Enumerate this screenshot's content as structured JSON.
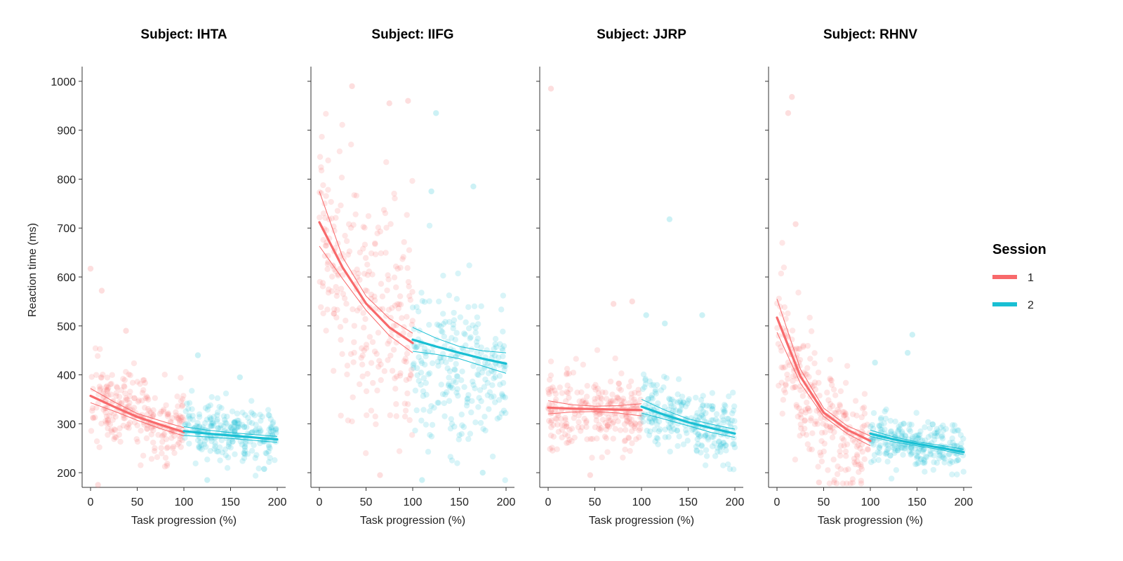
{
  "chart_data": {
    "type": "scatter",
    "ylabel": "Reaction time (ms)",
    "xlabel": "Task progression (%)",
    "xlim": [
      0,
      200
    ],
    "ylim": [
      170,
      1030
    ],
    "xticks": [
      0,
      50,
      100,
      150,
      200
    ],
    "yticks": [
      200,
      300,
      400,
      500,
      600,
      700,
      800,
      900,
      1000
    ],
    "legend": {
      "title": "Session",
      "placement": "right",
      "items": [
        {
          "label": "1",
          "color": "#f8696b"
        },
        {
          "label": "2",
          "color": "#19bfd3"
        }
      ]
    },
    "panels": [
      {
        "title": "Subject: IHTA",
        "scatter": {
          "session1": {
            "center": 320,
            "spread": 55,
            "outliers": [
              [
                0,
                617
              ],
              [
                12,
                572
              ],
              [
                38,
                490
              ],
              [
                8,
                175
              ]
            ]
          },
          "session2": {
            "center": 280,
            "spread": 45,
            "outliers": [
              [
                115,
                440
              ],
              [
                160,
                395
              ],
              [
                125,
                185
              ]
            ]
          }
        },
        "fit": {
          "session1": {
            "x": [
              0,
              25,
              50,
              75,
              100
            ],
            "y": [
              357,
              335,
              314,
              298,
              283
            ],
            "ci_low": [
              343,
              326,
              307,
              290,
              275
            ],
            "ci_high": [
              372,
              345,
              321,
              306,
              292
            ]
          },
          "session2": {
            "x": [
              100,
              125,
              150,
              175,
              200
            ],
            "y": [
              285,
              280,
              276,
              272,
              268
            ],
            "ci_low": [
              276,
              273,
              270,
              266,
              262
            ],
            "ci_high": [
              294,
              287,
              282,
              278,
              274
            ]
          }
        }
      },
      {
        "title": "Subject: IIFG",
        "scatter": {
          "session1": {
            "center": 560,
            "spread": 160,
            "outliers": [
              [
                35,
                990
              ],
              [
                75,
                955
              ],
              [
                95,
                960
              ],
              [
                65,
                195
              ]
            ]
          },
          "session2": {
            "center": 430,
            "spread": 110,
            "outliers": [
              [
                125,
                935
              ],
              [
                120,
                775
              ],
              [
                165,
                785
              ],
              [
                110,
                185
              ],
              [
                175,
                200
              ]
            ]
          }
        },
        "fit": {
          "session1": {
            "x": [
              0,
              25,
              50,
              75,
              100
            ],
            "y": [
              712,
              619,
              546,
              497,
              465
            ],
            "ci_low": [
              663,
              596,
              532,
              480,
              445
            ],
            "ci_high": [
              775,
              640,
              561,
              515,
              485
            ]
          },
          "session2": {
            "x": [
              100,
              125,
              150,
              175,
              200
            ],
            "y": [
              472,
              458,
              445,
              433,
              423
            ],
            "ci_low": [
              448,
              442,
              433,
              418,
              403
            ],
            "ci_high": [
              497,
              475,
              458,
              449,
              445
            ]
          }
        }
      },
      {
        "title": "Subject: JJRP",
        "scatter": {
          "session1": {
            "center": 330,
            "spread": 55,
            "outliers": [
              [
                3,
                985
              ],
              [
                90,
                550
              ],
              [
                70,
                545
              ],
              [
                45,
                195
              ]
            ]
          },
          "session2": {
            "center": 310,
            "spread": 50,
            "outliers": [
              [
                130,
                718
              ],
              [
                165,
                522
              ],
              [
                105,
                522
              ],
              [
                125,
                505
              ]
            ]
          }
        },
        "fit": {
          "session1": {
            "x": [
              0,
              25,
              50,
              75,
              100
            ],
            "y": [
              333,
              331,
              330,
              329,
              328
            ],
            "ci_low": [
              320,
              324,
              325,
              322,
              316
            ],
            "ci_high": [
              347,
              339,
              336,
              337,
              341
            ]
          },
          "session2": {
            "x": [
              100,
              125,
              150,
              175,
              200
            ],
            "y": [
              335,
              318,
              303,
              291,
              280
            ],
            "ci_low": [
              322,
              309,
              296,
              282,
              272
            ],
            "ci_high": [
              350,
              328,
              310,
              299,
              289
            ]
          }
        }
      },
      {
        "title": "Subject: RHNV",
        "scatter": {
          "session1": {
            "center": 340,
            "spread": 90,
            "outliers": [
              [
                16,
                968
              ],
              [
                12,
                935
              ],
              [
                20,
                708
              ],
              [
                45,
                180
              ]
            ]
          },
          "session2": {
            "center": 260,
            "spread": 35,
            "outliers": [
              [
                145,
                482
              ],
              [
                140,
                445
              ],
              [
                105,
                425
              ]
            ]
          }
        },
        "fit": {
          "session1": {
            "x": [
              0,
              25,
              50,
              75,
              100
            ],
            "y": [
              517,
              397,
              323,
              288,
              265
            ],
            "ci_low": [
              487,
              383,
              315,
              280,
              255
            ],
            "ci_high": [
              555,
              412,
              332,
              296,
              275
            ]
          },
          "session2": {
            "x": [
              100,
              125,
              150,
              175,
              200
            ],
            "y": [
              280,
              268,
              259,
              251,
              242
            ],
            "ci_low": [
              274,
              263,
              255,
              247,
              237
            ],
            "ci_high": [
              287,
              273,
              263,
              256,
              248
            ]
          }
        }
      }
    ]
  }
}
